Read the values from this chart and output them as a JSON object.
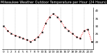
{
  "title": "Milwaukee Weather Outdoor Temperature per Hour (24 Hours)",
  "hours": [
    0,
    1,
    2,
    3,
    4,
    5,
    6,
    7,
    8,
    9,
    10,
    11,
    12,
    13,
    14,
    15,
    16,
    17,
    18,
    19,
    20,
    21,
    22,
    23
  ],
  "temps": [
    30,
    27,
    25,
    24,
    23,
    22,
    21,
    20,
    21,
    23,
    26,
    32,
    36,
    38,
    36,
    33,
    29,
    27,
    25,
    23,
    22,
    27,
    28,
    20
  ],
  "line_color": "#ff0000",
  "marker_color": "#000000",
  "background_color": "#ffffff",
  "title_bg": "#000000",
  "title_fg": "#ffffff",
  "grid_color": "#888888",
  "ylim": [
    15,
    42
  ],
  "yticks": [
    20,
    25,
    30,
    35,
    40
  ],
  "title_fontsize": 3.5,
  "tick_fontsize": 3.0
}
